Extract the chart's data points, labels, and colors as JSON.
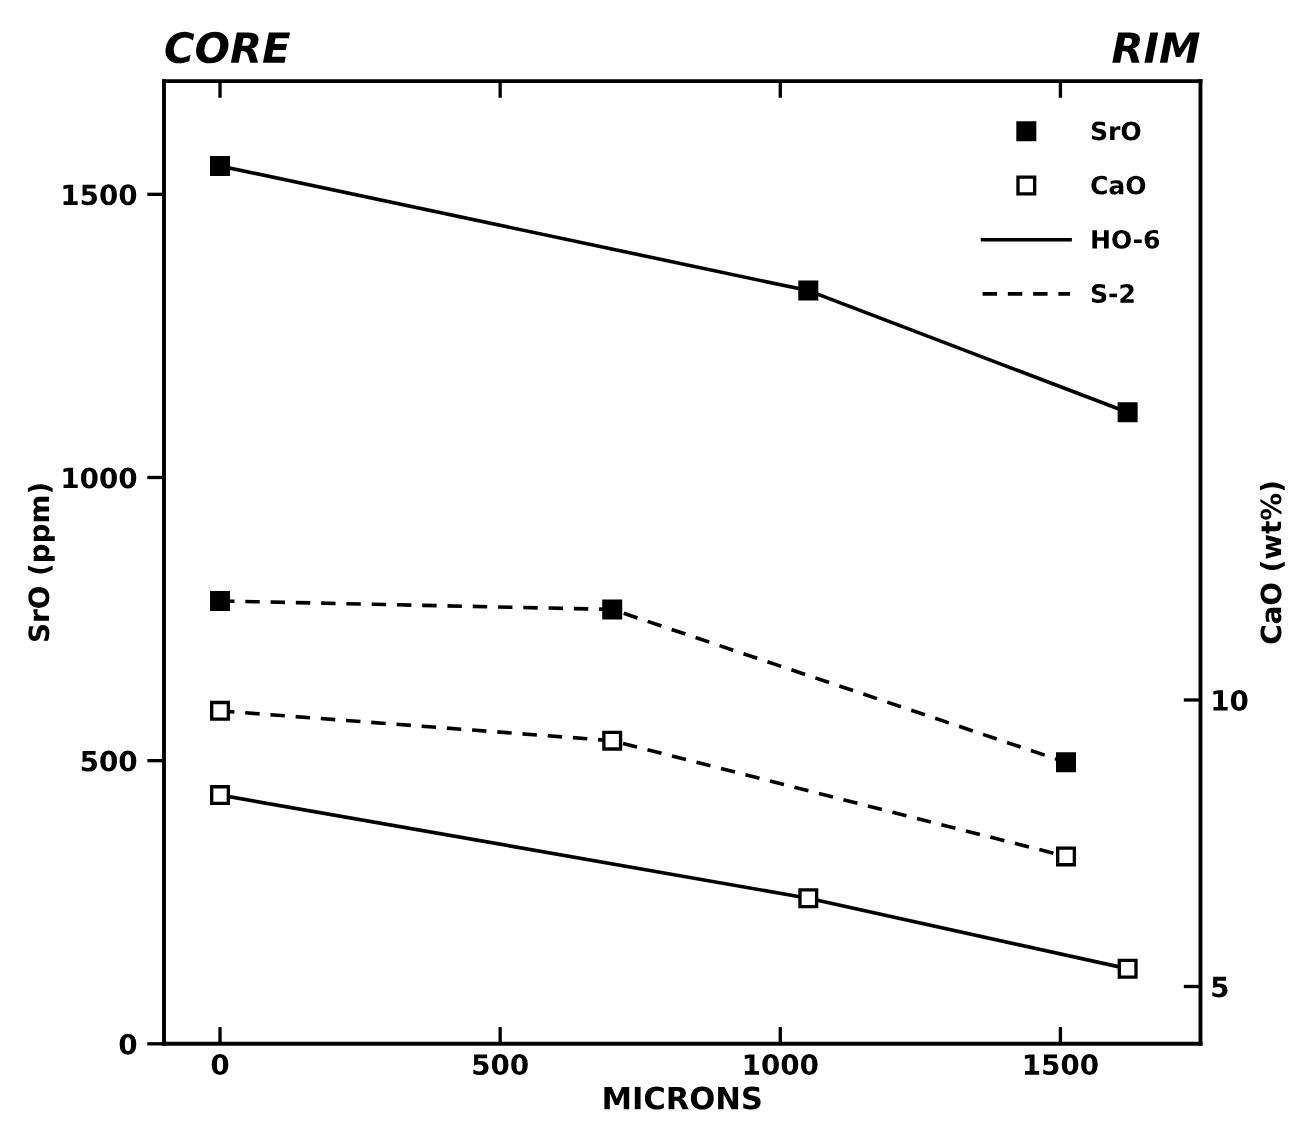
{
  "chart_data": {
    "type": "line",
    "xlabel": "MICRONS",
    "ylabel": "SrO (ppm)",
    "y2label": "CaO (wt%)",
    "annotations": [
      "CORE",
      "RIM"
    ],
    "xlim": [
      -100,
      1750
    ],
    "xticks": [
      0,
      500,
      1000,
      1500
    ],
    "ylim": [
      0,
      1700
    ],
    "yticks": [
      0,
      500,
      1000,
      1500
    ],
    "y2lim": [
      4,
      20.8
    ],
    "y2ticks": [
      5,
      10
    ],
    "legend": "top right",
    "grid": false,
    "marker": "square",
    "series": [
      {
        "name": "SrO",
        "color": "#000000",
        "line_style": "dashed",
        "x": [
          0,
          700,
          1510
        ],
        "values": [
          782,
          767,
          497
        ]
      },
      {
        "name": "CaO",
        "color": "#000000",
        "line_style": "solid",
        "axis": "y2",
        "x": [
          0,
          1050,
          1620
        ],
        "values": [
          8.34,
          6.54,
          5.31
        ]
      },
      {
        "name": "HO-6",
        "color": "#000000",
        "line_style": "solid",
        "x": [
          0,
          1050,
          1620
        ],
        "values": [
          1550,
          1330,
          1115
        ]
      },
      {
        "name": "S-2",
        "color": "#000000",
        "line_style": "dashed",
        "axis": "y2",
        "x": [
          0,
          700,
          1510
        ],
        "values": [
          9.81,
          9.29,
          7.27
        ]
      }
    ]
  }
}
